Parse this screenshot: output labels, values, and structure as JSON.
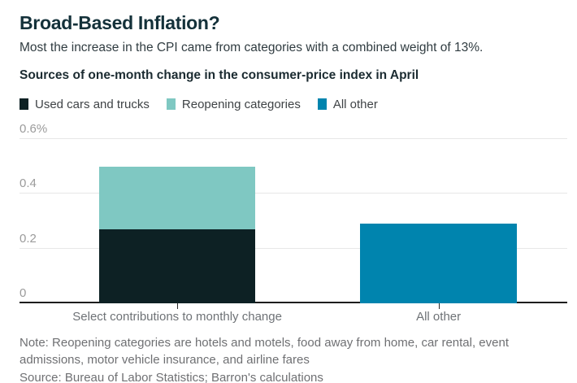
{
  "header": {
    "title": "Broad-Based Inflation?",
    "subtitle": "Most the increase in the CPI came from categories with a combined weight of 13%.",
    "chart_title": "Sources of one-month change in the consumer-price index in April"
  },
  "chart_data": {
    "type": "bar",
    "stacked": true,
    "title": "Sources of one-month change in the consumer-price index in April",
    "categories": [
      "Select contributions to monthly change",
      "All other"
    ],
    "series": [
      {
        "name": "Used cars and trucks",
        "color": "#0d2124",
        "values": [
          0.27,
          0
        ]
      },
      {
        "name": "Reopening categories",
        "color": "#7fc8c2",
        "values": [
          0.23,
          0
        ]
      },
      {
        "name": "All other",
        "color": "#0084ae",
        "values": [
          0,
          0.29
        ]
      }
    ],
    "ylim": [
      0,
      0.6
    ],
    "yticks": [
      {
        "value": 0,
        "label": "0"
      },
      {
        "value": 0.2,
        "label": "0.2"
      },
      {
        "value": 0.4,
        "label": "0.4"
      },
      {
        "value": 0.6,
        "label": "0.6%"
      }
    ],
    "grid": true,
    "legend_position": "top",
    "xlabel": "",
    "ylabel": ""
  },
  "footer": {
    "note": "Note: Reopening categories are hotels and motels, food away from home, car rental, event admissions, motor vehicle insurance, and airline fares",
    "source": "Source: Bureau of Labor Statistics; Barron's calculations"
  }
}
